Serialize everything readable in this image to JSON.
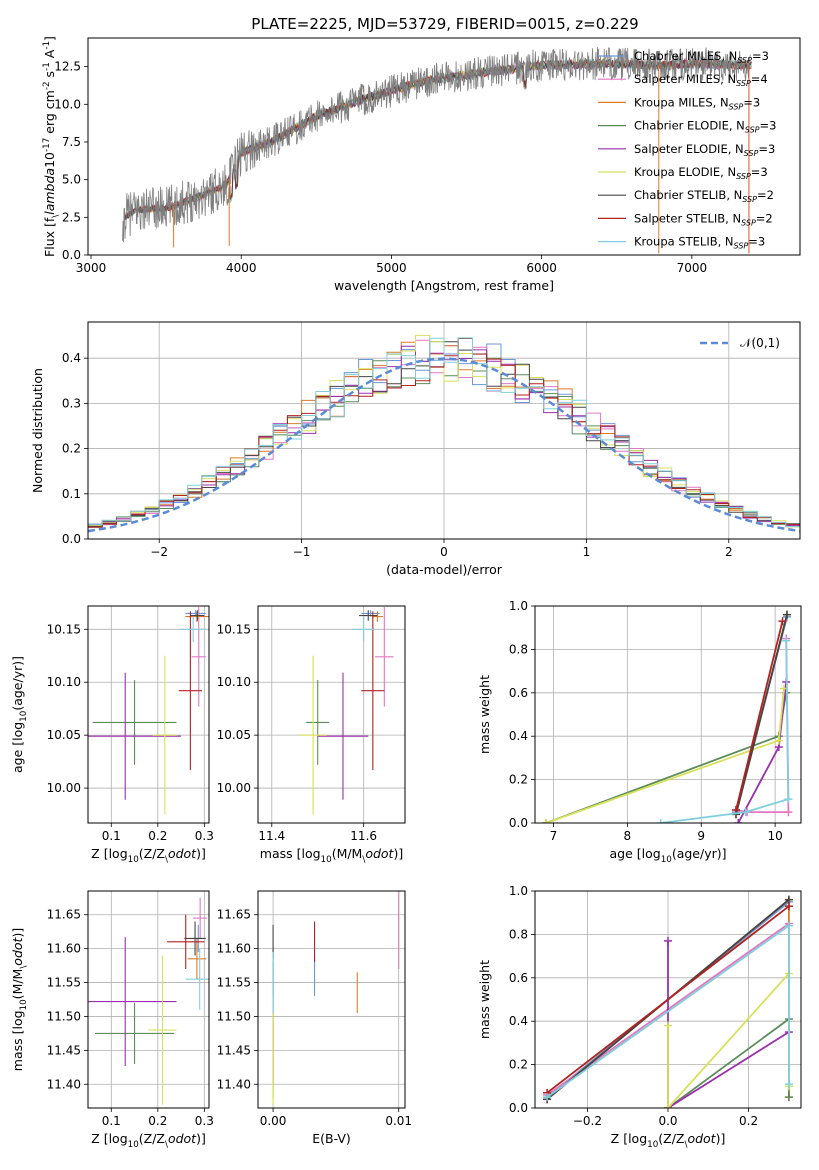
{
  "figure_title": "PLATE=2225, MJD=53729, FIBERID=0015, z=0.229",
  "series_colors": {
    "Chabrier MILES": "#6a98d8",
    "Salpeter MILES": "#e377c2",
    "Kroupa MILES": "#dd7a2a",
    "Chabrier ELODIE": "#5b8c5a",
    "Salpeter ELODIE": "#9b2fae",
    "Kroupa ELODIE": "#d8e05a",
    "Chabrier STELIB": "#454545",
    "Salpeter STELIB": "#b22222",
    "Kroupa STELIB": "#7fcfdc"
  },
  "chart_data": [
    {
      "type": "line",
      "id": "spectrum",
      "title": "PLATE=2225, MJD=53729, FIBERID=0015, z=0.229",
      "xlabel": "wavelength [Angstrom, rest frame]",
      "ylabel": "Flux [f$_\\lambda$10$^{-17}$ erg cm$^{-2}$ s$^{-1}$ A$^{-1}$]",
      "xlim": [
        2980,
        7720
      ],
      "ylim": [
        0,
        14.4
      ],
      "xticks": [
        "3000",
        "4000",
        "5000",
        "6000",
        "7000"
      ],
      "yticks": [
        "0.0",
        "2.5",
        "5.0",
        "7.5",
        "10.0",
        "12.5"
      ],
      "legend_position": "top-right",
      "grid": false,
      "continuum": [
        [
          3210,
          0.0
        ],
        [
          3220,
          2.5
        ],
        [
          3300,
          3.0
        ],
        [
          3500,
          3.1
        ],
        [
          3700,
          3.8
        ],
        [
          3900,
          4.6
        ],
        [
          4000,
          6.8
        ],
        [
          4200,
          7.5
        ],
        [
          4500,
          9.2
        ],
        [
          4800,
          10.3
        ],
        [
          5200,
          11.5
        ],
        [
          5600,
          12.1
        ],
        [
          6000,
          12.6
        ],
        [
          6400,
          12.7
        ],
        [
          6800,
          12.6
        ],
        [
          7000,
          12.7
        ],
        [
          7400,
          12.6
        ]
      ],
      "series": [
        {
          "name": "Chabrier MILES",
          "nssp": "3"
        },
        {
          "name": "Salpeter MILES",
          "nssp": "4"
        },
        {
          "name": "Kroupa MILES",
          "nssp": "3"
        },
        {
          "name": "Chabrier ELODIE",
          "nssp": "3"
        },
        {
          "name": "Salpeter ELODIE",
          "nssp": "3"
        },
        {
          "name": "Kroupa ELODIE",
          "nssp": "3"
        },
        {
          "name": "Chabrier STELIB",
          "nssp": "2"
        },
        {
          "name": "Salpeter STELIB",
          "nssp": "2"
        },
        {
          "name": "Kroupa STELIB",
          "nssp": "3"
        }
      ]
    },
    {
      "type": "histogram",
      "id": "residuals",
      "xlabel": "(data-model)/error",
      "ylabel": "Normed distribution",
      "xlim": [
        -2.5,
        2.5
      ],
      "ylim": [
        0,
        0.48
      ],
      "xticks": [
        "−2",
        "−1",
        "0",
        "1",
        "2"
      ],
      "yticks": [
        "0.0",
        "0.1",
        "0.2",
        "0.3",
        "0.4"
      ],
      "grid": true,
      "bin_start": -2.5,
      "bin_width": 0.1,
      "reference_curve": {
        "label": "$\\mathcal{N}(0,1)$",
        "mean": 0,
        "sigma": 1
      },
      "legend_position": "top-right"
    },
    {
      "type": "scatter",
      "id": "age-vs-Z",
      "xlabel": "Z [log$_{10}$(Z/Z$_\\odot$)]",
      "ylabel": "age  [log$_{10}$(age/yr)]",
      "xlim": [
        0.05,
        0.31
      ],
      "ylim": [
        9.967,
        10.172
      ],
      "xticks": [
        "0.1",
        "0.2",
        "0.3"
      ],
      "yticks": [
        "10.00",
        "10.05",
        "10.10",
        "10.15"
      ],
      "grid": true,
      "points": [
        {
          "series": "Chabrier MILES",
          "x": 0.281,
          "xerr": 0.022,
          "y": 10.165,
          "yerr": 0.003
        },
        {
          "series": "Salpeter MILES",
          "x": 0.288,
          "xerr": 0.015,
          "y": 10.124,
          "yerr": 0.047
        },
        {
          "series": "Kroupa MILES",
          "x": 0.284,
          "xerr": 0.025,
          "y": 10.162,
          "yerr": 0.005
        },
        {
          "series": "Chabrier ELODIE",
          "x": 0.15,
          "xerr": 0.09,
          "y": 10.062,
          "yerr": 0.04
        },
        {
          "series": "Salpeter ELODIE",
          "x": 0.13,
          "xerr": 0.12,
          "y": 10.049,
          "yerr": 0.06
        },
        {
          "series": "Kroupa ELODIE",
          "x": 0.215,
          "xerr": 0.026,
          "y": 10.05,
          "yerr": 0.075
        },
        {
          "series": "Chabrier STELIB",
          "x": 0.285,
          "xerr": 0.015,
          "y": 10.163,
          "yerr": 0.005
        },
        {
          "series": "Salpeter STELIB",
          "x": 0.27,
          "xerr": 0.025,
          "y": 10.092,
          "yerr": 0.075
        },
        {
          "series": "Kroupa STELIB",
          "x": 0.276,
          "xerr": 0.028,
          "y": 10.15,
          "yerr": 0.012
        }
      ]
    },
    {
      "type": "scatter",
      "id": "age-vs-mass",
      "xlabel": "mass [log$_{10}$(M/M$_\\odot$)]",
      "ylabel": "",
      "xlim": [
        11.37,
        11.69
      ],
      "ylim": [
        9.967,
        10.172
      ],
      "xticks": [
        "11.4",
        "11.6"
      ],
      "yticks": [
        "10.00",
        "10.05",
        "10.10",
        "10.15"
      ],
      "grid": true,
      "points": [
        {
          "series": "Chabrier MILES",
          "x": 11.615,
          "xerr": 0.02,
          "y": 10.165,
          "yerr": 0.003
        },
        {
          "series": "Salpeter MILES",
          "x": 11.645,
          "xerr": 0.02,
          "y": 10.124,
          "yerr": 0.047
        },
        {
          "series": "Kroupa MILES",
          "x": 11.63,
          "xerr": 0.012,
          "y": 10.162,
          "yerr": 0.005
        },
        {
          "series": "Chabrier ELODIE",
          "x": 11.5,
          "xerr": 0.025,
          "y": 10.062,
          "yerr": 0.04
        },
        {
          "series": "Salpeter ELODIE",
          "x": 11.555,
          "xerr": 0.055,
          "y": 10.049,
          "yerr": 0.06
        },
        {
          "series": "Kroupa ELODIE",
          "x": 11.49,
          "xerr": 0.03,
          "y": 10.05,
          "yerr": 0.075
        },
        {
          "series": "Chabrier STELIB",
          "x": 11.61,
          "xerr": 0.02,
          "y": 10.163,
          "yerr": 0.005
        },
        {
          "series": "Salpeter STELIB",
          "x": 11.62,
          "xerr": 0.025,
          "y": 10.092,
          "yerr": 0.075
        },
        {
          "series": "Kroupa STELIB",
          "x": 11.6,
          "xerr": 0.025,
          "y": 10.15,
          "yerr": 0.012
        }
      ]
    },
    {
      "type": "line",
      "id": "mass-weight-vs-age",
      "xlabel": "age  [log$_{10}$(age/yr)]",
      "ylabel": "mass weight",
      "xlim": [
        6.75,
        10.35
      ],
      "ylim": [
        0,
        1
      ],
      "xticks": [
        "7",
        "8",
        "9",
        "10"
      ],
      "yticks": [
        "0.0",
        "0.2",
        "0.4",
        "0.6",
        "0.8",
        "1.0"
      ],
      "grid": true,
      "series": [
        {
          "name": "Chabrier MILES",
          "x": [
            9.47,
            10.16
          ],
          "y": [
            0.05,
            0.95
          ]
        },
        {
          "name": "Salpeter MILES",
          "x": [
            9.47,
            9.62,
            10.18,
            10.15
          ],
          "y": [
            0.06,
            0.05,
            0.05,
            0.85
          ]
        },
        {
          "name": "Kroupa MILES",
          "x": [
            9.47,
            10.16
          ],
          "y": [
            0.04,
            0.96
          ]
        },
        {
          "name": "Chabrier ELODIE",
          "x": [
            6.9,
            10.05,
            10.15
          ],
          "y": [
            0.0,
            0.4,
            0.6
          ]
        },
        {
          "name": "Salpeter ELODIE",
          "x": [
            9.5,
            10.05,
            10.15
          ],
          "y": [
            0.0,
            0.35,
            0.65
          ]
        },
        {
          "name": "Kroupa ELODIE",
          "x": [
            6.9,
            10.05,
            10.12
          ],
          "y": [
            0.0,
            0.38,
            0.62
          ]
        },
        {
          "name": "Chabrier STELIB",
          "x": [
            9.47,
            10.16
          ],
          "y": [
            0.04,
            0.96
          ]
        },
        {
          "name": "Salpeter STELIB",
          "x": [
            9.47,
            10.1
          ],
          "y": [
            0.06,
            0.93
          ]
        },
        {
          "name": "Kroupa STELIB",
          "x": [
            8.45,
            9.6,
            10.18,
            10.15
          ],
          "y": [
            0.0,
            0.05,
            0.11,
            0.84
          ]
        }
      ]
    },
    {
      "type": "scatter",
      "id": "mass-vs-Z",
      "xlabel": "Z [log$_{10}$(Z/Z$_\\odot$)]",
      "ylabel": "mass [log$_{10}$(M/M$_\\odot$)]",
      "xlim": [
        0.05,
        0.31
      ],
      "ylim": [
        11.365,
        11.685
      ],
      "xticks": [
        "0.1",
        "0.2",
        "0.3"
      ],
      "yticks": [
        "11.40",
        "11.45",
        "11.50",
        "11.55",
        "11.60",
        "11.65"
      ],
      "grid": true,
      "points": [
        {
          "series": "Chabrier MILES",
          "x": 0.287,
          "xerr": 0.01,
          "y": 11.615,
          "yerr": 0.02
        },
        {
          "series": "Salpeter MILES",
          "x": 0.291,
          "xerr": 0.015,
          "y": 11.645,
          "yerr": 0.03
        },
        {
          "series": "Kroupa MILES",
          "x": 0.284,
          "xerr": 0.02,
          "y": 11.585,
          "yerr": 0.03
        },
        {
          "series": "Chabrier ELODIE",
          "x": 0.15,
          "xerr": 0.085,
          "y": 11.475,
          "yerr": 0.045
        },
        {
          "series": "Salpeter ELODIE",
          "x": 0.13,
          "xerr": 0.11,
          "y": 11.522,
          "yerr": 0.095
        },
        {
          "series": "Kroupa ELODIE",
          "x": 0.21,
          "xerr": 0.03,
          "y": 11.48,
          "yerr": 0.11
        },
        {
          "series": "Chabrier STELIB",
          "x": 0.28,
          "xerr": 0.023,
          "y": 11.615,
          "yerr": 0.025
        },
        {
          "series": "Salpeter STELIB",
          "x": 0.26,
          "xerr": 0.04,
          "y": 11.61,
          "yerr": 0.04
        },
        {
          "series": "Kroupa STELIB",
          "x": 0.29,
          "xerr": 0.03,
          "y": 11.555,
          "yerr": 0.045
        }
      ]
    },
    {
      "type": "scatter",
      "id": "mass-vs-EBV",
      "xlabel": "E(B-V)",
      "ylabel": "",
      "xlim": [
        -0.0012,
        0.0105
      ],
      "ylim": [
        11.365,
        11.685
      ],
      "xticks": [
        "0.00",
        "0.01"
      ],
      "yticks": [
        "11.40",
        "11.45",
        "11.50",
        "11.55",
        "11.60",
        "11.65"
      ],
      "grid": true,
      "points": [
        {
          "series": "Chabrier MILES",
          "x": 0.0033,
          "xerr": 0,
          "y": 11.56,
          "yerr": 0.03
        },
        {
          "series": "Salpeter MILES",
          "x": 0.01,
          "xerr": 0,
          "y": 11.63,
          "yerr": 0.06
        },
        {
          "series": "Kroupa MILES",
          "x": 0.0067,
          "xerr": 0,
          "y": 11.535,
          "yerr": 0.03
        },
        {
          "series": "Chabrier ELODIE",
          "x": 0.0,
          "xerr": 0,
          "y": 11.48,
          "yerr": 0.1
        },
        {
          "series": "Salpeter ELODIE",
          "x": 0.0,
          "xerr": 0,
          "y": 11.5,
          "yerr": 0.1
        },
        {
          "series": "Kroupa ELODIE",
          "x": 0.0,
          "xerr": 0,
          "y": 11.45,
          "yerr": 0.08
        },
        {
          "series": "Chabrier STELIB",
          "x": 0.0,
          "xerr": 0,
          "y": 11.61,
          "yerr": 0.025
        },
        {
          "series": "Salpeter STELIB",
          "x": 0.0033,
          "xerr": 0,
          "y": 11.61,
          "yerr": 0.03
        },
        {
          "series": "Kroupa STELIB",
          "x": 0.0,
          "xerr": 0,
          "y": 11.55,
          "yerr": 0.045
        }
      ]
    },
    {
      "type": "line",
      "id": "mass-weight-vs-Z",
      "xlabel": "Z [log$_{10}$(Z/Z$_\\odot$)]",
      "ylabel": "mass weight",
      "xlim": [
        -0.33,
        0.33
      ],
      "ylim": [
        0,
        1
      ],
      "xticks": [
        "−0.2",
        "0.0",
        "0.2"
      ],
      "yticks": [
        "0.0",
        "0.2",
        "0.4",
        "0.6",
        "0.8",
        "1.0"
      ],
      "grid": true,
      "series": [
        {
          "name": "Chabrier MILES",
          "x": [
            -0.3,
            0.3
          ],
          "y": [
            0.05,
            0.95
          ]
        },
        {
          "name": "Salpeter MILES",
          "x": [
            -0.3,
            0.3
          ],
          "y": [
            0.06,
            0.85
          ]
        },
        {
          "name": "Kroupa MILES",
          "x": [
            -0.3,
            0.3,
            0.3
          ],
          "y": [
            0.04,
            0.96,
            0.05
          ]
        },
        {
          "name": "Chabrier ELODIE",
          "x": [
            0.0,
            0.3,
            0.3
          ],
          "y": [
            0.0,
            0.41,
            0.05
          ]
        },
        {
          "name": "Salpeter ELODIE",
          "x": [
            0.0,
            0.0,
            0.3
          ],
          "y": [
            0.77,
            0.0,
            0.35
          ]
        },
        {
          "name": "Kroupa ELODIE",
          "x": [
            0.0,
            0.0,
            0.3,
            0.3
          ],
          "y": [
            0.38,
            0.0,
            0.62,
            0.1
          ]
        },
        {
          "name": "Chabrier STELIB",
          "x": [
            -0.3,
            0.3
          ],
          "y": [
            0.04,
            0.96
          ]
        },
        {
          "name": "Salpeter STELIB",
          "x": [
            -0.3,
            0.3
          ],
          "y": [
            0.07,
            0.93
          ]
        },
        {
          "name": "Kroupa STELIB",
          "x": [
            -0.3,
            0.3,
            0.3
          ],
          "y": [
            0.05,
            0.84,
            0.11
          ]
        }
      ]
    }
  ]
}
